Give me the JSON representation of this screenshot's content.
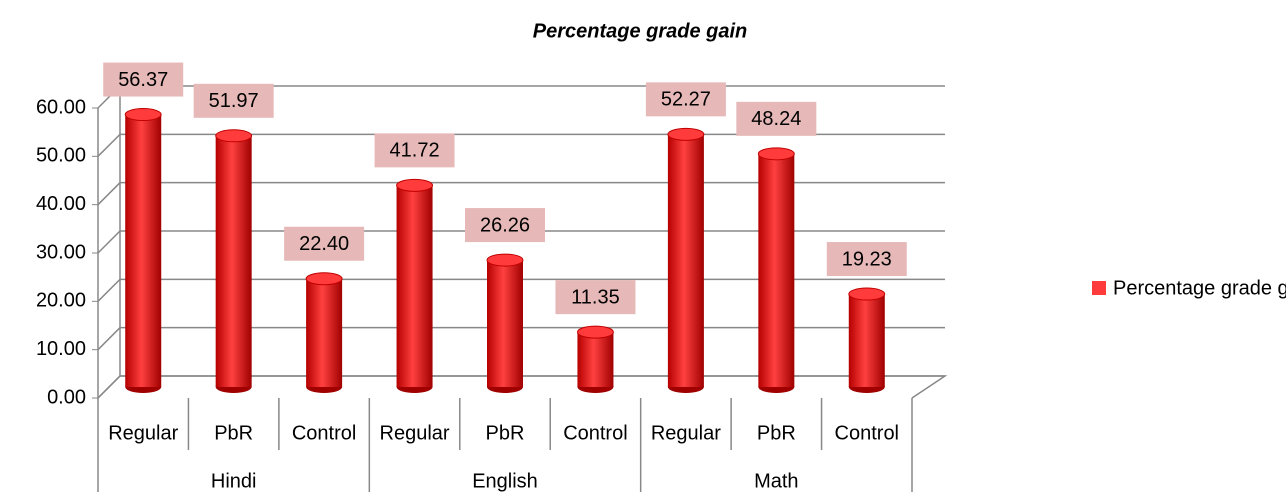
{
  "chart_data": {
    "type": "bar",
    "title": "Percentage grade gain",
    "categories": [
      "Regular",
      "PbR",
      "Control",
      "Regular",
      "PbR",
      "Control",
      "Regular",
      "PbR",
      "Control"
    ],
    "groups": [
      "Hindi",
      "English",
      "Math"
    ],
    "series": [
      {
        "name": "Percentage grade gain",
        "color": "#ff3b3b",
        "values": [
          56.37,
          51.97,
          22.4,
          41.72,
          26.26,
          11.35,
          52.27,
          48.24,
          19.23
        ],
        "value_labels": [
          "56.37",
          "51.97",
          "22.40",
          "41.72",
          "26.26",
          "11.35",
          "52.27",
          "48.24",
          "19.23"
        ]
      }
    ],
    "ylim": [
      0,
      60
    ],
    "yticks": [
      {
        "value": 0,
        "label": "0.00"
      },
      {
        "value": 10,
        "label": "10.00"
      },
      {
        "value": 20,
        "label": "20.00"
      },
      {
        "value": 30,
        "label": "30.00"
      },
      {
        "value": 40,
        "label": "40.00"
      },
      {
        "value": 50,
        "label": "50.00"
      },
      {
        "value": 60,
        "label": "60.00"
      }
    ],
    "grid": true,
    "legend": "right"
  }
}
